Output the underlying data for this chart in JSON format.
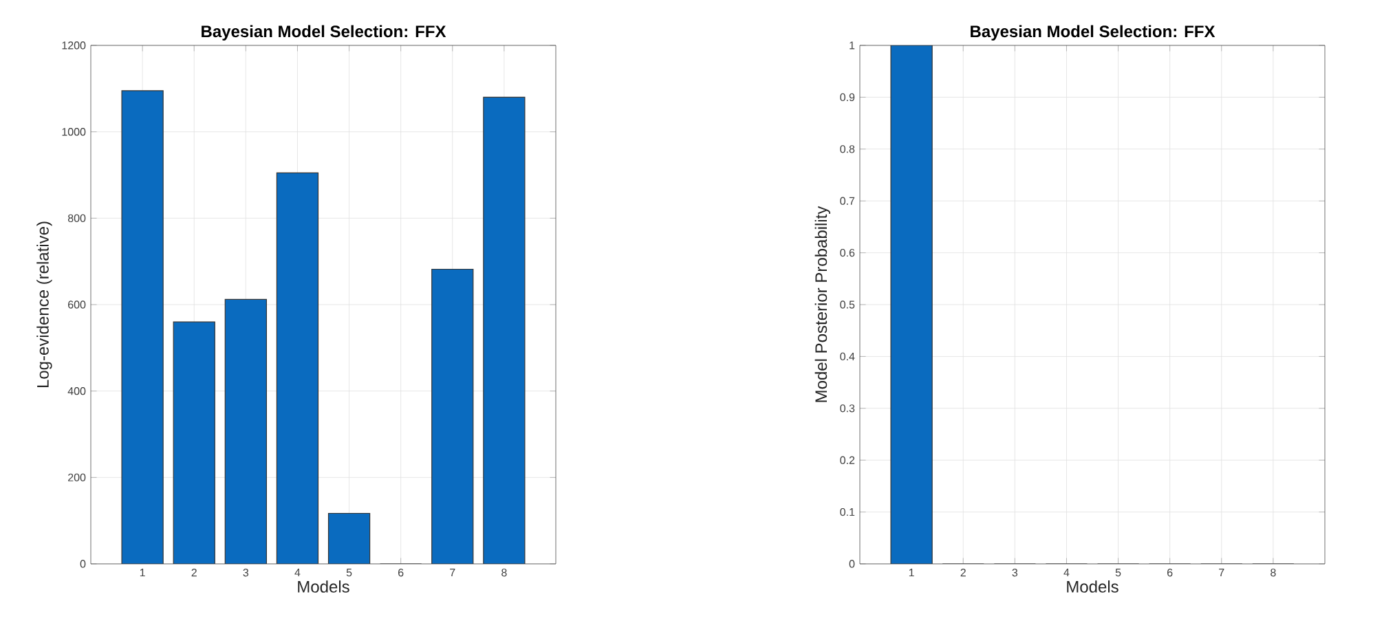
{
  "chart_data": [
    {
      "type": "bar",
      "title": "Bayesian Model Selection: FFX",
      "xlabel": "Models",
      "ylabel": "Log-evidence (relative)",
      "x": [
        1,
        2,
        3,
        4,
        5,
        6,
        7,
        8
      ],
      "values": [
        1095,
        560,
        612,
        905,
        117,
        0,
        682,
        1080
      ],
      "color": "#0a6bbf",
      "xlim": [
        0,
        9
      ],
      "xticks": [
        1,
        2,
        3,
        4,
        5,
        6,
        7,
        8
      ],
      "ylim": [
        0,
        1200
      ],
      "yticks": [
        0,
        200,
        400,
        600,
        800,
        1000,
        1200
      ],
      "grid": true
    },
    {
      "type": "bar",
      "title": "Bayesian Model Selection: FFX",
      "xlabel": "Models",
      "ylabel": "Model Posterior Probability",
      "x": [
        1,
        2,
        3,
        4,
        5,
        6,
        7,
        8
      ],
      "values": [
        1,
        0,
        0,
        0,
        0,
        0,
        0,
        0
      ],
      "color": "#0a6bbf",
      "xlim": [
        0,
        9
      ],
      "xticks": [
        1,
        2,
        3,
        4,
        5,
        6,
        7,
        8
      ],
      "ylim": [
        0,
        1
      ],
      "yticks": [
        0,
        0.1,
        0.2,
        0.3,
        0.4,
        0.5,
        0.6,
        0.7,
        0.8,
        0.9,
        1
      ],
      "grid": true
    }
  ]
}
